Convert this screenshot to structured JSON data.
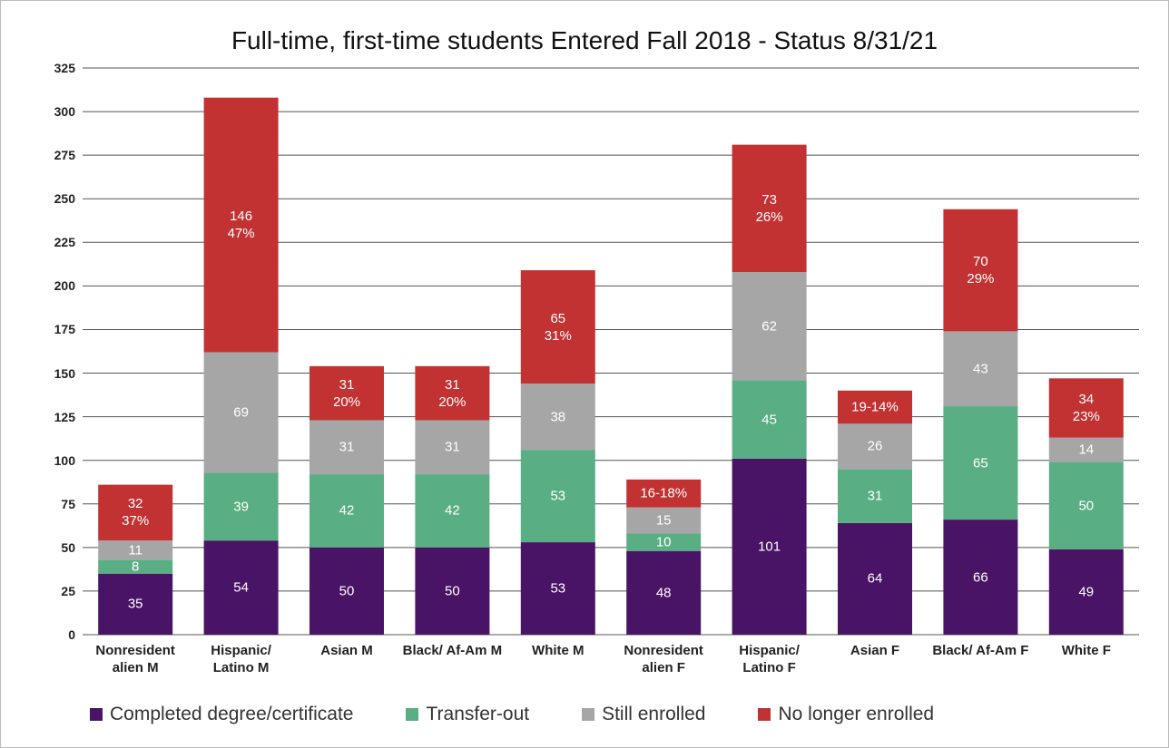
{
  "chart_data": {
    "type": "stacked-bar",
    "title": "Full-time, first-time students Entered Fall 2018 - Status 8/31/21",
    "categories": [
      "Nonresident alien M",
      "Hispanic/ Latino M",
      "Asian M",
      "Black/ Af-Am M",
      "White M",
      "Nonresident alien F",
      "Hispanic/ Latino F",
      "Asian F",
      "Black/ Af-Am F",
      "White F"
    ],
    "series": [
      {
        "name": "Completed degree/certificate",
        "color": "#4a1466",
        "values": [
          35,
          54,
          50,
          50,
          53,
          48,
          101,
          64,
          66,
          49
        ]
      },
      {
        "name": "Transfer-out",
        "color": "#5aae84",
        "values": [
          8,
          39,
          42,
          42,
          53,
          10,
          45,
          31,
          65,
          50
        ]
      },
      {
        "name": "Still enrolled",
        "color": "#a6a6a6",
        "values": [
          11,
          69,
          31,
          31,
          38,
          15,
          62,
          26,
          43,
          14
        ]
      },
      {
        "name": "No longer enrolled",
        "color": "#c23232",
        "values": [
          32,
          146,
          31,
          31,
          65,
          16,
          73,
          19,
          70,
          34
        ],
        "value_labels": [
          "32\n37%",
          "146\n47%",
          "31\n20%",
          "31\n20%",
          "65\n31%",
          "16-18%",
          "73\n26%",
          "19-14%",
          "70\n29%",
          "34\n23%"
        ]
      }
    ],
    "ylim": [
      0,
      325
    ],
    "yticks": [
      0,
      25,
      50,
      75,
      100,
      125,
      150,
      175,
      200,
      225,
      250,
      275,
      300,
      325
    ],
    "grid": true,
    "legend": "bottom"
  }
}
